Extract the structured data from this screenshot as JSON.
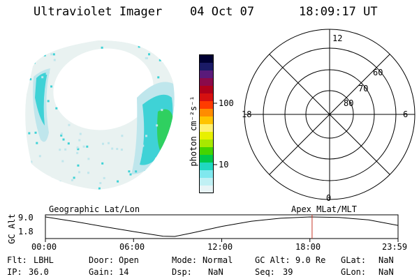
{
  "header": {
    "instrument": "Ultraviolet Imager",
    "date": "04 Oct 07",
    "time": "18:09:17 UT"
  },
  "colorbar": {
    "unit": "photon cm⁻²s⁻¹",
    "tick_100": "100",
    "tick_10": "10",
    "colors": [
      "#000033",
      "#1a1a66",
      "#5a1a7a",
      "#8a0a4a",
      "#b0001a",
      "#d61010",
      "#ff3b00",
      "#ff8c00",
      "#ffc400",
      "#fff070",
      "#e8f000",
      "#a8e800",
      "#44d400",
      "#00c84a",
      "#20d8c0",
      "#80e8ee",
      "#c0f0f4",
      "#e8f4f6"
    ]
  },
  "aurora_colors": {
    "pale": "#d7e8e6",
    "light": "#bfe6ec",
    "cyan": "#3fd2d6",
    "green": "#2fd060"
  },
  "polar_grid": {
    "mlt_12": "12",
    "mlt_18": "18",
    "mlt_6": "6",
    "mlt_0": "0",
    "lat_60": "60",
    "lat_70": "70",
    "lat_80": "80"
  },
  "altitude_plot": {
    "ylabel": "GC Alt",
    "y_high": "9.0",
    "y_low": "1.8",
    "left_caption": "Geographic Lat/Lon",
    "right_caption": "Apex MLat/MLT",
    "x_ticks": [
      "00:00",
      "06:00",
      "12:00",
      "18:00",
      "23:59"
    ],
    "marker_color": "#c8382a"
  },
  "chart_data": {
    "type": "line",
    "title": "",
    "xlabel": "",
    "ylabel": "GC Alt",
    "x": [
      0,
      2,
      4,
      6,
      8,
      8.8,
      10,
      12,
      14,
      16,
      18,
      20,
      22,
      23.98
    ],
    "y": [
      9.0,
      7.3,
      5.4,
      3.6,
      1.9,
      1.8,
      3.1,
      5.5,
      7.4,
      8.5,
      9.0,
      8.8,
      7.9,
      5.9
    ],
    "ylim": [
      1.8,
      9.0
    ],
    "marker_x": 18.15,
    "grid": false
  },
  "status": {
    "flt_label": "Flt:",
    "flt_value": "LBHL",
    "door_label": "Door:",
    "door_value": "Open",
    "mode_label": "Mode:",
    "mode_value": "Normal",
    "gcalt_label": "GC Alt:",
    "gcalt_value": "9.0 Re",
    "glat_label": "GLat:",
    "glat_value": "NaN",
    "ip_label": "IP:",
    "ip_value": "36.0",
    "gain_label": "Gain:",
    "gain_value": "14",
    "dsp_label": "Dsp:",
    "dsp_value": "NaN",
    "seq_label": "Seq:",
    "seq_value": "39",
    "glon_label": "GLon:",
    "glon_value": "NaN"
  }
}
